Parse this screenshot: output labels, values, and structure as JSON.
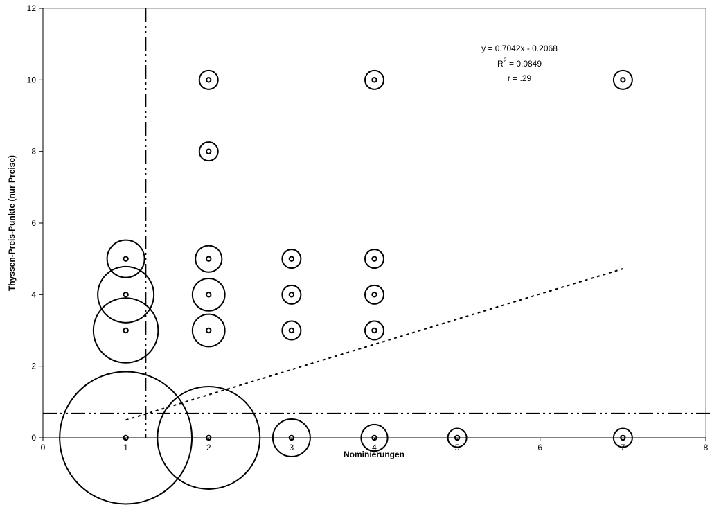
{
  "chart_data": {
    "type": "bubble-scatter",
    "title": "",
    "xlabel": "Nominierungen",
    "ylabel": "Thyssen-Preis-Punkte (nur Preise)",
    "xlim": [
      0,
      8
    ],
    "ylim": [
      0,
      12
    ],
    "x_ticks": [
      "0",
      "1",
      "2",
      "3",
      "4",
      "5",
      "6",
      "7",
      "8"
    ],
    "y_ticks": [
      "0",
      "2",
      "4",
      "6",
      "8",
      "10",
      "12"
    ],
    "grid": false,
    "annotations": {
      "equation": "y = 0.7042x - 0.2068",
      "r2_prefix": "R",
      "r2_sup": "2",
      "r2_value": " = 0.0849",
      "r": "r = .29"
    },
    "trendline": {
      "slope": 0.7042,
      "intercept": -0.2068,
      "x_range": [
        1,
        7
      ],
      "style": "dotted"
    },
    "reference_lines": {
      "vertical_x": 1.24,
      "horizontal_y": 0.68,
      "style": "dash-dot-dot"
    },
    "points": [
      {
        "x": 1,
        "y": 0,
        "n": 50
      },
      {
        "x": 2,
        "y": 0,
        "n": 30
      },
      {
        "x": 3,
        "y": 0,
        "n": 4
      },
      {
        "x": 4,
        "y": 0,
        "n": 2
      },
      {
        "x": 5,
        "y": 0,
        "n": 1
      },
      {
        "x": 7,
        "y": 0,
        "n": 1
      },
      {
        "x": 1,
        "y": 3,
        "n": 12
      },
      {
        "x": 1,
        "y": 4,
        "n": 9
      },
      {
        "x": 1,
        "y": 5,
        "n": 4
      },
      {
        "x": 2,
        "y": 3,
        "n": 3
      },
      {
        "x": 2,
        "y": 4,
        "n": 3
      },
      {
        "x": 2,
        "y": 5,
        "n": 2
      },
      {
        "x": 3,
        "y": 3,
        "n": 1
      },
      {
        "x": 3,
        "y": 4,
        "n": 1
      },
      {
        "x": 3,
        "y": 5,
        "n": 1
      },
      {
        "x": 4,
        "y": 3,
        "n": 1
      },
      {
        "x": 4,
        "y": 4,
        "n": 1
      },
      {
        "x": 4,
        "y": 5,
        "n": 1
      },
      {
        "x": 2,
        "y": 8,
        "n": 1
      },
      {
        "x": 2,
        "y": 10,
        "n": 1
      },
      {
        "x": 4,
        "y": 10,
        "n": 1
      },
      {
        "x": 7,
        "y": 10,
        "n": 1
      }
    ]
  }
}
